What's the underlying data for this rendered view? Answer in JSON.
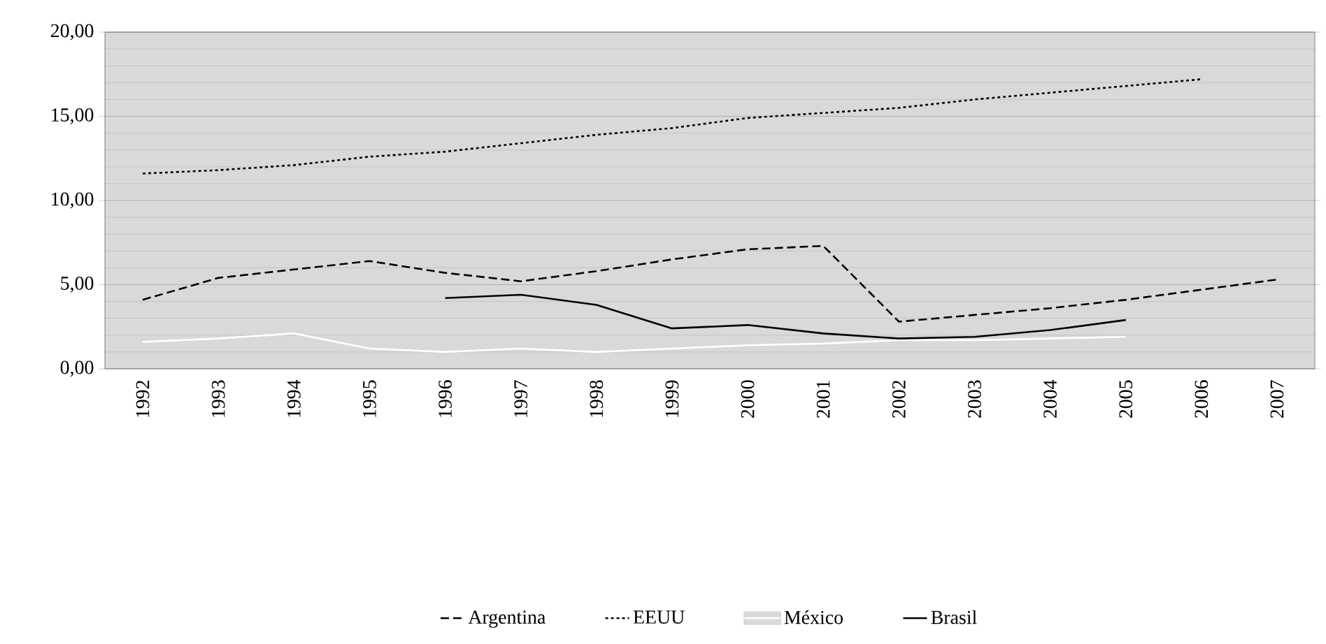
{
  "chart_data": {
    "type": "line",
    "categories": [
      "1992",
      "1993",
      "1994",
      "1995",
      "1996",
      "1997",
      "1998",
      "1999",
      "2000",
      "2001",
      "2002",
      "2003",
      "2004",
      "2005",
      "2006",
      "2007"
    ],
    "series": [
      {
        "name": "Argentina",
        "color": "#000000",
        "line_style": "dashed",
        "values": [
          4.1,
          5.4,
          5.9,
          6.4,
          5.7,
          5.2,
          5.8,
          6.5,
          7.1,
          7.3,
          2.8,
          3.2,
          3.6,
          4.1,
          4.7,
          5.3
        ]
      },
      {
        "name": "EEUU",
        "color": "#000000",
        "line_style": "dotted",
        "values": [
          11.6,
          11.8,
          12.1,
          12.6,
          12.9,
          13.4,
          13.9,
          14.3,
          14.9,
          15.2,
          15.5,
          16.0,
          16.4,
          16.8,
          17.2,
          null
        ]
      },
      {
        "name": "México",
        "color": "#ffffff",
        "line_style": "solid",
        "values": [
          1.6,
          1.8,
          2.1,
          1.2,
          1.0,
          1.2,
          1.0,
          1.2,
          1.4,
          1.5,
          1.7,
          1.7,
          1.8,
          1.9,
          null,
          null
        ]
      },
      {
        "name": "Brasil",
        "color": "#000000",
        "line_style": "solid",
        "values": [
          null,
          null,
          null,
          null,
          4.2,
          4.4,
          3.8,
          2.4,
          2.6,
          2.1,
          1.8,
          1.9,
          2.3,
          2.9,
          null,
          null
        ]
      }
    ],
    "ylim": [
      0,
      20
    ],
    "yticks": [
      {
        "value": 0,
        "label": "0,00"
      },
      {
        "value": 5,
        "label": "5,00"
      },
      {
        "value": 10,
        "label": "10,00"
      },
      {
        "value": 15,
        "label": "15,00"
      },
      {
        "value": 20,
        "label": "20,00"
      }
    ],
    "grid": "y",
    "legend": "bottom",
    "marker": "none"
  }
}
